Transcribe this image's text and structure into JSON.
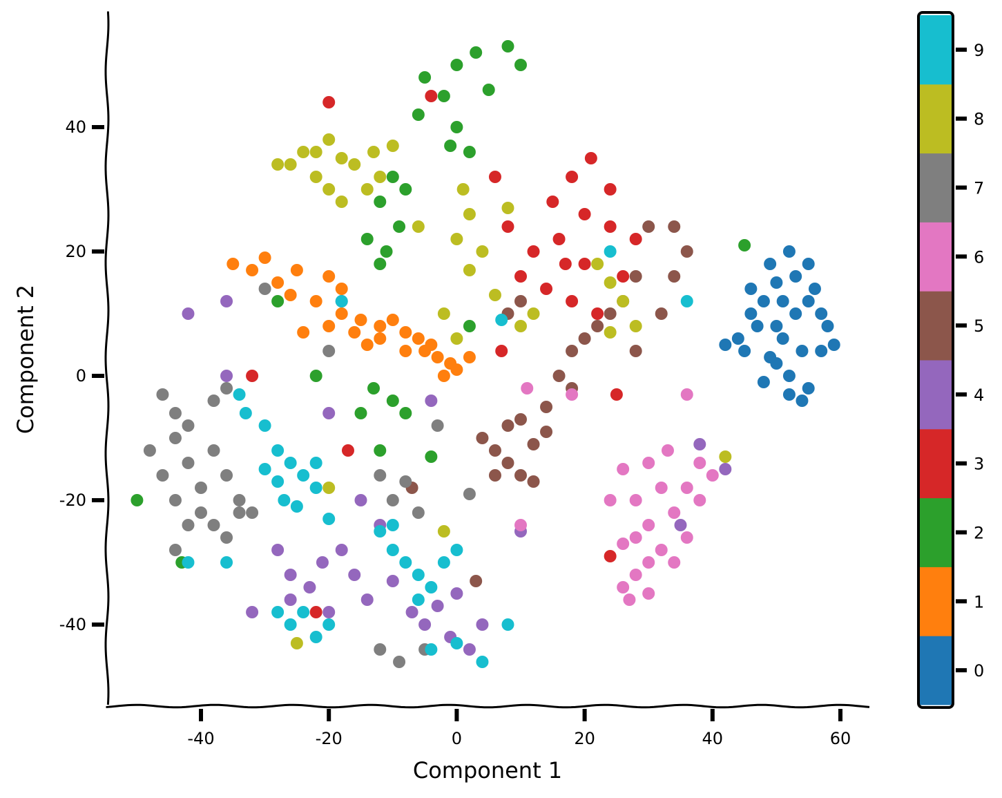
{
  "chart_data": {
    "type": "scatter",
    "title": "",
    "xlabel": "Component 1",
    "ylabel": "Component 2",
    "xlim": [
      -55,
      65
    ],
    "ylim": [
      -53,
      58
    ],
    "xticks": [
      -40,
      -20,
      0,
      20,
      40,
      60
    ],
    "yticks": [
      -40,
      -20,
      0,
      20,
      40
    ],
    "xtick_labels": [
      "-40",
      "-20",
      "0",
      "20",
      "40",
      "60"
    ],
    "ytick_labels": [
      "-40",
      "-20",
      "0",
      "20",
      "40"
    ],
    "grid": false,
    "style": "xkcd hand-drawn",
    "colorbar": {
      "orientation": "vertical",
      "position": "right",
      "ticks": [
        0,
        1,
        2,
        3,
        4,
        5,
        6,
        7,
        8,
        9
      ],
      "tick_labels": [
        "0",
        "1",
        "2",
        "3",
        "4",
        "5",
        "6",
        "7",
        "8",
        "9"
      ]
    },
    "colors": {
      "0": "#1f77b4",
      "1": "#ff7f0e",
      "2": "#2ca02c",
      "3": "#d62728",
      "4": "#9467bd",
      "5": "#8c564b",
      "6": "#e377c2",
      "7": "#7f7f7f",
      "8": "#bcbd22",
      "9": "#17becf"
    },
    "clusters": [
      {
        "label": "0",
        "points": [
          [
            50,
            15
          ],
          [
            52,
            20
          ],
          [
            55,
            18
          ],
          [
            48,
            12
          ],
          [
            46,
            10
          ],
          [
            58,
            8
          ],
          [
            54,
            4
          ],
          [
            50,
            2
          ],
          [
            52,
            0
          ],
          [
            55,
            -2
          ],
          [
            57,
            4
          ],
          [
            44,
            6
          ],
          [
            47,
            8
          ],
          [
            53,
            10
          ],
          [
            56,
            14
          ],
          [
            49,
            18
          ],
          [
            51,
            6
          ],
          [
            59,
            5
          ],
          [
            52,
            -3
          ],
          [
            48,
            -1
          ],
          [
            45,
            4
          ],
          [
            42,
            5
          ],
          [
            55,
            12
          ],
          [
            50,
            8
          ],
          [
            53,
            16
          ],
          [
            57,
            10
          ],
          [
            54,
            -4
          ],
          [
            46,
            14
          ],
          [
            51,
            12
          ],
          [
            49,
            3
          ]
        ]
      },
      {
        "label": "1",
        "points": [
          [
            -35,
            18
          ],
          [
            -30,
            19
          ],
          [
            -25,
            17
          ],
          [
            -20,
            16
          ],
          [
            -18,
            14
          ],
          [
            -28,
            15
          ],
          [
            -22,
            12
          ],
          [
            -18,
            10
          ],
          [
            -15,
            9
          ],
          [
            -12,
            8
          ],
          [
            -10,
            9
          ],
          [
            -8,
            7
          ],
          [
            -6,
            6
          ],
          [
            -5,
            4
          ],
          [
            -3,
            3
          ],
          [
            -1,
            2
          ],
          [
            0,
            1
          ],
          [
            2,
            3
          ],
          [
            -4,
            5
          ],
          [
            -8,
            4
          ],
          [
            -12,
            6
          ],
          [
            -16,
            7
          ],
          [
            -20,
            8
          ],
          [
            -24,
            7
          ],
          [
            -26,
            13
          ],
          [
            -32,
            17
          ],
          [
            -14,
            5
          ],
          [
            -2,
            0
          ]
        ]
      },
      {
        "label": "2",
        "points": [
          [
            -5,
            48
          ],
          [
            0,
            50
          ],
          [
            3,
            52
          ],
          [
            8,
            53
          ],
          [
            10,
            50
          ],
          [
            5,
            46
          ],
          [
            -2,
            45
          ],
          [
            -6,
            42
          ],
          [
            0,
            40
          ],
          [
            -1,
            37
          ],
          [
            2,
            36
          ],
          [
            -10,
            32
          ],
          [
            -8,
            30
          ],
          [
            -12,
            28
          ],
          [
            -14,
            22
          ],
          [
            -11,
            20
          ],
          [
            -9,
            24
          ],
          [
            -12,
            18
          ],
          [
            -13,
            -2
          ],
          [
            -15,
            -6
          ],
          [
            -10,
            -4
          ],
          [
            -8,
            -6
          ],
          [
            -12,
            -12
          ],
          [
            -4,
            -13
          ],
          [
            2,
            8
          ],
          [
            45,
            21
          ],
          [
            -50,
            -20
          ],
          [
            -43,
            -30
          ],
          [
            -28,
            12
          ],
          [
            -22,
            0
          ]
        ]
      },
      {
        "label": "3",
        "points": [
          [
            15,
            28
          ],
          [
            18,
            32
          ],
          [
            21,
            35
          ],
          [
            24,
            30
          ],
          [
            20,
            26
          ],
          [
            16,
            22
          ],
          [
            12,
            20
          ],
          [
            10,
            16
          ],
          [
            14,
            14
          ],
          [
            18,
            12
          ],
          [
            22,
            10
          ],
          [
            26,
            16
          ],
          [
            28,
            22
          ],
          [
            24,
            24
          ],
          [
            17,
            18
          ],
          [
            20,
            18
          ],
          [
            8,
            24
          ],
          [
            6,
            32
          ],
          [
            -20,
            44
          ],
          [
            -32,
            0
          ],
          [
            -17,
            -12
          ],
          [
            25,
            -3
          ],
          [
            -4,
            45
          ],
          [
            -22,
            -38
          ],
          [
            24,
            -29
          ],
          [
            7,
            4
          ]
        ]
      },
      {
        "label": "4",
        "points": [
          [
            -28,
            -28
          ],
          [
            -26,
            -32
          ],
          [
            -23,
            -34
          ],
          [
            -21,
            -30
          ],
          [
            -18,
            -28
          ],
          [
            -16,
            -32
          ],
          [
            -14,
            -36
          ],
          [
            -10,
            -33
          ],
          [
            -7,
            -38
          ],
          [
            -5,
            -40
          ],
          [
            -3,
            -37
          ],
          [
            0,
            -35
          ],
          [
            -1,
            -42
          ],
          [
            2,
            -44
          ],
          [
            4,
            -40
          ],
          [
            -20,
            -38
          ],
          [
            -26,
            -36
          ],
          [
            -32,
            -38
          ],
          [
            -15,
            -20
          ],
          [
            -12,
            -24
          ],
          [
            -42,
            10
          ],
          [
            -36,
            12
          ],
          [
            -36,
            0
          ],
          [
            -20,
            -6
          ],
          [
            -4,
            -4
          ],
          [
            10,
            -25
          ],
          [
            38,
            -11
          ],
          [
            42,
            -15
          ],
          [
            35,
            -24
          ]
        ]
      },
      {
        "label": "5",
        "points": [
          [
            4,
            -10
          ],
          [
            6,
            -12
          ],
          [
            8,
            -14
          ],
          [
            10,
            -16
          ],
          [
            12,
            -11
          ],
          [
            14,
            -9
          ],
          [
            10,
            -7
          ],
          [
            8,
            -8
          ],
          [
            6,
            -16
          ],
          [
            12,
            -17
          ],
          [
            14,
            -5
          ],
          [
            16,
            0
          ],
          [
            18,
            4
          ],
          [
            20,
            6
          ],
          [
            22,
            8
          ],
          [
            24,
            10
          ],
          [
            26,
            12
          ],
          [
            28,
            4
          ],
          [
            32,
            10
          ],
          [
            34,
            16
          ],
          [
            36,
            20
          ],
          [
            34,
            24
          ],
          [
            30,
            24
          ],
          [
            28,
            16
          ],
          [
            10,
            12
          ],
          [
            8,
            10
          ],
          [
            -7,
            -18
          ],
          [
            3,
            -33
          ],
          [
            18,
            -2
          ]
        ]
      },
      {
        "label": "6",
        "points": [
          [
            26,
            -15
          ],
          [
            28,
            -20
          ],
          [
            30,
            -24
          ],
          [
            32,
            -28
          ],
          [
            34,
            -22
          ],
          [
            36,
            -18
          ],
          [
            38,
            -14
          ],
          [
            40,
            -16
          ],
          [
            30,
            -14
          ],
          [
            28,
            -32
          ],
          [
            26,
            -34
          ],
          [
            30,
            -35
          ],
          [
            34,
            -30
          ],
          [
            36,
            -26
          ],
          [
            32,
            -18
          ],
          [
            28,
            -26
          ],
          [
            33,
            -12
          ],
          [
            38,
            -20
          ],
          [
            24,
            -20
          ],
          [
            26,
            -27
          ],
          [
            30,
            -30
          ],
          [
            11,
            -2
          ],
          [
            10,
            -24
          ],
          [
            18,
            -3
          ],
          [
            36,
            -3
          ],
          [
            27,
            -36
          ]
        ]
      },
      {
        "label": "7",
        "points": [
          [
            -48,
            -12
          ],
          [
            -46,
            -16
          ],
          [
            -44,
            -10
          ],
          [
            -42,
            -14
          ],
          [
            -40,
            -18
          ],
          [
            -38,
            -12
          ],
          [
            -36,
            -16
          ],
          [
            -34,
            -20
          ],
          [
            -44,
            -20
          ],
          [
            -42,
            -24
          ],
          [
            -38,
            -24
          ],
          [
            -36,
            -26
          ],
          [
            -34,
            -22
          ],
          [
            -42,
            -8
          ],
          [
            -44,
            -6
          ],
          [
            -38,
            -4
          ],
          [
            -46,
            -3
          ],
          [
            -36,
            -2
          ],
          [
            -40,
            -22
          ],
          [
            -32,
            -22
          ],
          [
            -44,
            -28
          ],
          [
            -12,
            -16
          ],
          [
            -10,
            -20
          ],
          [
            -8,
            -17
          ],
          [
            -12,
            -44
          ],
          [
            -9,
            -46
          ],
          [
            -5,
            -44
          ],
          [
            -6,
            -22
          ],
          [
            -30,
            14
          ],
          [
            -20,
            4
          ],
          [
            -18,
            12
          ],
          [
            -3,
            -8
          ],
          [
            2,
            -19
          ]
        ]
      },
      {
        "label": "8",
        "points": [
          [
            -24,
            36
          ],
          [
            -20,
            38
          ],
          [
            -18,
            35
          ],
          [
            -22,
            32
          ],
          [
            -16,
            34
          ],
          [
            -13,
            36
          ],
          [
            -12,
            32
          ],
          [
            -26,
            34
          ],
          [
            -20,
            30
          ],
          [
            -28,
            34
          ],
          [
            -18,
            28
          ],
          [
            -14,
            30
          ],
          [
            -10,
            37
          ],
          [
            -6,
            24
          ],
          [
            1,
            30
          ],
          [
            2,
            26
          ],
          [
            4,
            20
          ],
          [
            2,
            17
          ],
          [
            0,
            22
          ],
          [
            8,
            27
          ],
          [
            22,
            18
          ],
          [
            24,
            15
          ],
          [
            26,
            12
          ],
          [
            28,
            8
          ],
          [
            24,
            7
          ],
          [
            10,
            8
          ],
          [
            12,
            10
          ],
          [
            6,
            13
          ],
          [
            -2,
            10
          ],
          [
            0,
            6
          ],
          [
            -22,
            36
          ],
          [
            -25,
            -43
          ],
          [
            -2,
            -25
          ],
          [
            42,
            -13
          ],
          [
            -20,
            -18
          ]
        ]
      },
      {
        "label": "9",
        "points": [
          [
            -34,
            -3
          ],
          [
            -33,
            -6
          ],
          [
            -30,
            -8
          ],
          [
            -28,
            -12
          ],
          [
            -26,
            -14
          ],
          [
            -24,
            -16
          ],
          [
            -22,
            -18
          ],
          [
            -28,
            -17
          ],
          [
            -30,
            -15
          ],
          [
            -27,
            -20
          ],
          [
            -25,
            -21
          ],
          [
            -22,
            -14
          ],
          [
            -12,
            -25
          ],
          [
            -10,
            -28
          ],
          [
            -8,
            -30
          ],
          [
            -6,
            -32
          ],
          [
            -4,
            -34
          ],
          [
            -10,
            -24
          ],
          [
            -6,
            -36
          ],
          [
            -2,
            -30
          ],
          [
            0,
            -28
          ],
          [
            -24,
            -38
          ],
          [
            -26,
            -40
          ],
          [
            -22,
            -42
          ],
          [
            -28,
            -38
          ],
          [
            -20,
            -40
          ],
          [
            -4,
            -44
          ],
          [
            0,
            -43
          ],
          [
            4,
            -46
          ],
          [
            8,
            -40
          ],
          [
            -42,
            -30
          ],
          [
            -18,
            12
          ],
          [
            7,
            9
          ],
          [
            24,
            20
          ],
          [
            36,
            12
          ],
          [
            -20,
            -23
          ],
          [
            -36,
            -30
          ]
        ]
      }
    ]
  }
}
